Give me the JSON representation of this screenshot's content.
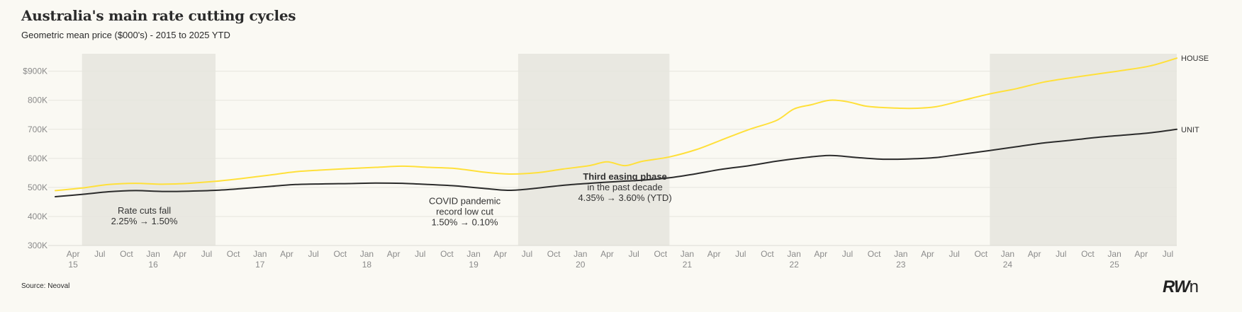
{
  "chart_data": {
    "type": "line",
    "title": "Australia's main rate cutting cycles",
    "subtitle": "Geometric mean price ($000's) - 2015 to 2025 YTD",
    "source": "Source: Neoval",
    "logo": "RWn",
    "y_ticks": [
      {
        "value": 300,
        "label": "300K"
      },
      {
        "value": 400,
        "label": "400K"
      },
      {
        "value": 500,
        "label": "500K"
      },
      {
        "value": 600,
        "label": "600K"
      },
      {
        "value": 700,
        "label": "700K"
      },
      {
        "value": 800,
        "label": "800K"
      },
      {
        "value": 900,
        "label": "$900K"
      }
    ],
    "ylim": [
      300,
      960
    ],
    "xlim": [
      "2015-02",
      "2025-08"
    ],
    "x_ticks": [
      {
        "x": "2015-04",
        "label": "Apr",
        "year": "15"
      },
      {
        "x": "2015-07",
        "label": "Jul",
        "year": ""
      },
      {
        "x": "2015-10",
        "label": "Oct",
        "year": ""
      },
      {
        "x": "2016-01",
        "label": "Jan",
        "year": "16"
      },
      {
        "x": "2016-04",
        "label": "Apr",
        "year": ""
      },
      {
        "x": "2016-07",
        "label": "Jul",
        "year": ""
      },
      {
        "x": "2016-10",
        "label": "Oct",
        "year": ""
      },
      {
        "x": "2017-01",
        "label": "Jan",
        "year": "17"
      },
      {
        "x": "2017-04",
        "label": "Apr",
        "year": ""
      },
      {
        "x": "2017-07",
        "label": "Jul",
        "year": ""
      },
      {
        "x": "2017-10",
        "label": "Oct",
        "year": ""
      },
      {
        "x": "2018-01",
        "label": "Jan",
        "year": "18"
      },
      {
        "x": "2018-04",
        "label": "Apr",
        "year": ""
      },
      {
        "x": "2018-07",
        "label": "Jul",
        "year": ""
      },
      {
        "x": "2018-10",
        "label": "Oct",
        "year": ""
      },
      {
        "x": "2019-01",
        "label": "Jan",
        "year": "19"
      },
      {
        "x": "2019-04",
        "label": "Apr",
        "year": ""
      },
      {
        "x": "2019-07",
        "label": "Jul",
        "year": ""
      },
      {
        "x": "2019-10",
        "label": "Oct",
        "year": ""
      },
      {
        "x": "2020-01",
        "label": "Jan",
        "year": "20"
      },
      {
        "x": "2020-04",
        "label": "Apr",
        "year": ""
      },
      {
        "x": "2020-07",
        "label": "Jul",
        "year": ""
      },
      {
        "x": "2020-10",
        "label": "Oct",
        "year": ""
      },
      {
        "x": "2021-01",
        "label": "Jan",
        "year": "21"
      },
      {
        "x": "2021-04",
        "label": "Apr",
        "year": ""
      },
      {
        "x": "2021-07",
        "label": "Jul",
        "year": ""
      },
      {
        "x": "2021-10",
        "label": "Oct",
        "year": ""
      },
      {
        "x": "2022-01",
        "label": "Jan",
        "year": "22"
      },
      {
        "x": "2022-04",
        "label": "Apr",
        "year": ""
      },
      {
        "x": "2022-07",
        "label": "Jul",
        "year": ""
      },
      {
        "x": "2022-10",
        "label": "Oct",
        "year": ""
      },
      {
        "x": "2023-01",
        "label": "Jan",
        "year": "23"
      },
      {
        "x": "2023-04",
        "label": "Apr",
        "year": ""
      },
      {
        "x": "2023-07",
        "label": "Jul",
        "year": ""
      },
      {
        "x": "2023-10",
        "label": "Oct",
        "year": ""
      },
      {
        "x": "2024-01",
        "label": "Jan",
        "year": "24"
      },
      {
        "x": "2024-04",
        "label": "Apr",
        "year": ""
      },
      {
        "x": "2024-07",
        "label": "Jul",
        "year": ""
      },
      {
        "x": "2024-10",
        "label": "Oct",
        "year": ""
      },
      {
        "x": "2025-01",
        "label": "Jan",
        "year": "25"
      },
      {
        "x": "2025-04",
        "label": "Apr",
        "year": ""
      },
      {
        "x": "2025-07",
        "label": "Jul",
        "year": ""
      }
    ],
    "shaded_periods": [
      {
        "start": "2015-05",
        "end": "2016-08"
      },
      {
        "start": "2019-06",
        "end": "2020-11"
      },
      {
        "start": "2023-11",
        "end": "2025-08"
      }
    ],
    "annotations": [
      {
        "lines": [
          "Rate cuts fall",
          "2.25% → 1.50%"
        ],
        "x": "2015-12",
        "y": 410,
        "bold_first": false
      },
      {
        "lines": [
          "COVID pandemic",
          "record low cut",
          "1.50% → 0.10%"
        ],
        "x": "2018-12",
        "y": 442,
        "bold_first": false
      },
      {
        "lines": [
          "Third easing phase",
          "in the past decade",
          "4.35% → 3.60% (YTD)"
        ],
        "x": "2020-06",
        "y": 527,
        "bold_first": true
      }
    ],
    "series": [
      {
        "name": "HOUSE",
        "color": "#ffe03a",
        "points": [
          [
            "2015-02",
            489
          ],
          [
            "2015-05",
            498
          ],
          [
            "2015-08",
            510
          ],
          [
            "2015-11",
            514
          ],
          [
            "2016-02",
            511
          ],
          [
            "2016-05",
            514
          ],
          [
            "2016-08",
            521
          ],
          [
            "2016-11",
            531
          ],
          [
            "2017-02",
            542
          ],
          [
            "2017-05",
            554
          ],
          [
            "2017-08",
            560
          ],
          [
            "2017-11",
            565
          ],
          [
            "2018-02",
            569
          ],
          [
            "2018-05",
            573
          ],
          [
            "2018-08",
            569
          ],
          [
            "2018-11",
            565
          ],
          [
            "2019-02",
            553
          ],
          [
            "2019-05",
            546
          ],
          [
            "2019-08",
            550
          ],
          [
            "2019-11",
            563
          ],
          [
            "2020-02",
            575
          ],
          [
            "2020-04",
            588
          ],
          [
            "2020-06",
            575
          ],
          [
            "2020-08",
            590
          ],
          [
            "2020-11",
            605
          ],
          [
            "2021-02",
            630
          ],
          [
            "2021-05",
            665
          ],
          [
            "2021-08",
            700
          ],
          [
            "2021-11",
            730
          ],
          [
            "2022-01",
            770
          ],
          [
            "2022-03",
            785
          ],
          [
            "2022-05",
            800
          ],
          [
            "2022-07",
            795
          ],
          [
            "2022-09",
            780
          ],
          [
            "2022-11",
            775
          ],
          [
            "2023-02",
            772
          ],
          [
            "2023-05",
            778
          ],
          [
            "2023-08",
            800
          ],
          [
            "2023-11",
            822
          ],
          [
            "2024-02",
            840
          ],
          [
            "2024-05",
            862
          ],
          [
            "2024-08",
            877
          ],
          [
            "2024-11",
            890
          ],
          [
            "2025-02",
            903
          ],
          [
            "2025-05",
            918
          ],
          [
            "2025-08",
            945
          ]
        ]
      },
      {
        "name": "UNIT",
        "color": "#2b2b2b",
        "points": [
          [
            "2015-02",
            468
          ],
          [
            "2015-05",
            476
          ],
          [
            "2015-08",
            485
          ],
          [
            "2015-11",
            489
          ],
          [
            "2016-02",
            486
          ],
          [
            "2016-05",
            487
          ],
          [
            "2016-08",
            490
          ],
          [
            "2016-11",
            496
          ],
          [
            "2017-02",
            503
          ],
          [
            "2017-05",
            510
          ],
          [
            "2017-08",
            512
          ],
          [
            "2017-11",
            513
          ],
          [
            "2018-02",
            515
          ],
          [
            "2018-05",
            514
          ],
          [
            "2018-08",
            510
          ],
          [
            "2018-11",
            505
          ],
          [
            "2019-02",
            497
          ],
          [
            "2019-05",
            490
          ],
          [
            "2019-08",
            497
          ],
          [
            "2019-11",
            507
          ],
          [
            "2020-02",
            514
          ],
          [
            "2020-05",
            520
          ],
          [
            "2020-08",
            525
          ],
          [
            "2020-11",
            533
          ],
          [
            "2021-02",
            547
          ],
          [
            "2021-05",
            563
          ],
          [
            "2021-08",
            575
          ],
          [
            "2021-11",
            590
          ],
          [
            "2022-02",
            602
          ],
          [
            "2022-05",
            610
          ],
          [
            "2022-08",
            603
          ],
          [
            "2022-11",
            597
          ],
          [
            "2023-02",
            598
          ],
          [
            "2023-05",
            603
          ],
          [
            "2023-08",
            615
          ],
          [
            "2023-11",
            627
          ],
          [
            "2024-02",
            640
          ],
          [
            "2024-05",
            653
          ],
          [
            "2024-08",
            662
          ],
          [
            "2024-11",
            672
          ],
          [
            "2025-02",
            680
          ],
          [
            "2025-05",
            688
          ],
          [
            "2025-08",
            700
          ]
        ]
      }
    ]
  }
}
